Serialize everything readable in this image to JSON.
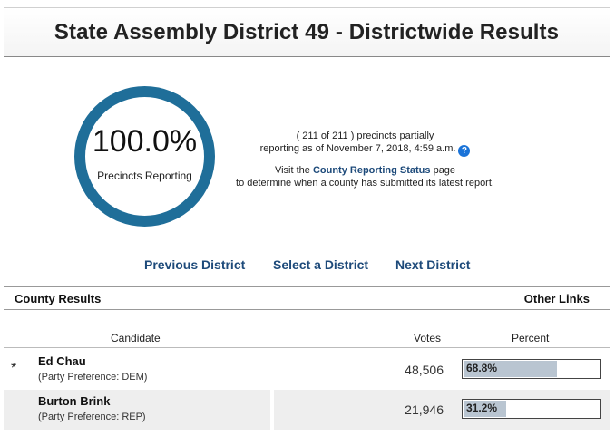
{
  "page": {
    "title": "State Assembly District 49 - Districtwide Results"
  },
  "reporting": {
    "percent": "100.0%",
    "percent_label": "Precincts Reporting",
    "precincts_line": "( 211 of 211 ) precincts partially",
    "asof_line": "reporting as of November 7, 2018, 4:59 a.m.",
    "help_glyph": "?",
    "visit_prefix": "Visit the ",
    "visit_link": "County Reporting Status",
    "visit_suffix": " page",
    "visit_line2": "to determine when a county has submitted its latest report."
  },
  "nav": {
    "previous": "Previous District",
    "select": "Select a District",
    "next": "Next District"
  },
  "section": {
    "left": "County Results",
    "right": "Other Links"
  },
  "table": {
    "headers": {
      "candidate": "Candidate",
      "votes": "Votes",
      "percent": "Percent"
    },
    "rows": [
      {
        "winner_mark": "*",
        "name": "Ed Chau",
        "party": "(Party Preference: DEM)",
        "votes": "48,506",
        "percent": "68.8%",
        "percent_value": 68.8
      },
      {
        "winner_mark": "",
        "name": "Burton Brink",
        "party": "(Party Preference: REP)",
        "votes": "21,946",
        "percent": "31.2%",
        "percent_value": 31.2
      }
    ]
  },
  "colors": {
    "ring": "#1f6e99",
    "link": "#1d4a7a",
    "bar_fill": "#b9c5d1",
    "help_icon": "#1a73d8"
  }
}
